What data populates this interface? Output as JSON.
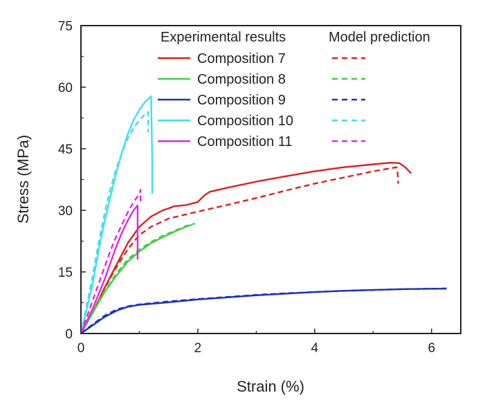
{
  "chart_data": {
    "type": "line",
    "title": "",
    "xlabel": "Strain (%)",
    "ylabel": "Stress (MPa)",
    "xlim": [
      0,
      6.5
    ],
    "ylim": [
      0,
      75
    ],
    "x_ticks": [
      0,
      2,
      4,
      6
    ],
    "y_ticks": [
      0,
      15,
      30,
      45,
      60,
      75
    ],
    "x_tick_labels": [
      "0",
      "2",
      "4",
      "6"
    ],
    "y_tick_labels": [
      "0",
      "15",
      "30",
      "45",
      "60",
      "75"
    ],
    "legend": {
      "placement": "top-right",
      "header_experimental": "Experimental results",
      "header_model": "Model prediction",
      "entries": [
        "Composition 7",
        "Composition 8",
        "Composition 9",
        "Composition 10",
        "Composition 11"
      ]
    },
    "series": [
      {
        "name": "Composition 7",
        "kind": "experimental",
        "color": "#e01e1e",
        "points": [
          [
            0,
            0
          ],
          [
            0.2,
            5
          ],
          [
            0.4,
            11
          ],
          [
            0.6,
            16.5
          ],
          [
            0.8,
            22
          ],
          [
            1.0,
            26
          ],
          [
            1.2,
            28.5
          ],
          [
            1.4,
            30
          ],
          [
            1.6,
            31
          ],
          [
            1.8,
            31.3
          ],
          [
            2.0,
            32
          ],
          [
            2.1,
            33.5
          ],
          [
            2.2,
            34.5
          ],
          [
            2.5,
            35.5
          ],
          [
            3.0,
            37
          ],
          [
            3.5,
            38.3
          ],
          [
            4.0,
            39.5
          ],
          [
            4.5,
            40.5
          ],
          [
            5.0,
            41.2
          ],
          [
            5.3,
            41.6
          ],
          [
            5.45,
            41.5
          ],
          [
            5.55,
            40.5
          ],
          [
            5.65,
            39
          ]
        ]
      },
      {
        "name": "Composition 7",
        "kind": "model",
        "color": "#e01e1e",
        "points": [
          [
            0,
            0
          ],
          [
            0.2,
            5
          ],
          [
            0.4,
            11
          ],
          [
            0.6,
            16
          ],
          [
            0.8,
            20.5
          ],
          [
            1.0,
            24
          ],
          [
            1.2,
            26
          ],
          [
            1.5,
            28
          ],
          [
            2.0,
            29.7
          ],
          [
            2.5,
            31.3
          ],
          [
            3.0,
            33
          ],
          [
            3.5,
            34.8
          ],
          [
            4.0,
            36.5
          ],
          [
            4.5,
            38
          ],
          [
            5.0,
            39.5
          ],
          [
            5.4,
            40.5
          ],
          [
            5.42,
            39
          ],
          [
            5.43,
            36.5
          ]
        ]
      },
      {
        "name": "Composition 8",
        "kind": "experimental",
        "color": "#3cd23c",
        "points": [
          [
            0,
            0
          ],
          [
            0.2,
            5
          ],
          [
            0.4,
            10
          ],
          [
            0.6,
            14
          ],
          [
            0.8,
            17.5
          ],
          [
            1.0,
            20
          ],
          [
            1.2,
            22
          ],
          [
            1.4,
            23.5
          ],
          [
            1.6,
            24.8
          ],
          [
            1.8,
            26
          ],
          [
            1.9,
            26.5
          ]
        ]
      },
      {
        "name": "Composition 8",
        "kind": "model",
        "color": "#3cd23c",
        "points": [
          [
            0,
            0
          ],
          [
            0.2,
            5.2
          ],
          [
            0.4,
            10.3
          ],
          [
            0.6,
            14.5
          ],
          [
            0.8,
            18
          ],
          [
            1.0,
            20.5
          ],
          [
            1.2,
            22.3
          ],
          [
            1.4,
            23.8
          ],
          [
            1.6,
            25
          ],
          [
            1.8,
            26.2
          ],
          [
            1.95,
            26.8
          ]
        ]
      },
      {
        "name": "Composition 9",
        "kind": "experimental",
        "color": "#1a2fc4",
        "points": [
          [
            0,
            0
          ],
          [
            0.2,
            2
          ],
          [
            0.4,
            4
          ],
          [
            0.6,
            5.5
          ],
          [
            0.8,
            6.5
          ],
          [
            1.0,
            7
          ],
          [
            1.5,
            7.6
          ],
          [
            2.0,
            8.3
          ],
          [
            2.5,
            8.8
          ],
          [
            3.0,
            9.3
          ],
          [
            3.5,
            9.7
          ],
          [
            4.0,
            10.1
          ],
          [
            4.5,
            10.4
          ],
          [
            5.0,
            10.6
          ],
          [
            5.5,
            10.8
          ],
          [
            6.0,
            10.9
          ],
          [
            6.25,
            10.9
          ]
        ]
      },
      {
        "name": "Composition 9",
        "kind": "model",
        "color": "#1a2fc4",
        "points": [
          [
            0,
            0
          ],
          [
            0.2,
            2.2
          ],
          [
            0.4,
            4.3
          ],
          [
            0.6,
            5.8
          ],
          [
            0.8,
            6.6
          ],
          [
            1.0,
            7.1
          ],
          [
            1.5,
            7.8
          ],
          [
            2.0,
            8.4
          ],
          [
            2.5,
            8.9
          ],
          [
            3.0,
            9.4
          ],
          [
            3.5,
            9.8
          ],
          [
            4.0,
            10.1
          ],
          [
            4.5,
            10.4
          ],
          [
            5.0,
            10.6
          ],
          [
            5.5,
            10.8
          ],
          [
            6.0,
            10.9
          ],
          [
            6.3,
            11
          ]
        ]
      },
      {
        "name": "Composition 10",
        "kind": "experimental",
        "color": "#3ee0ee",
        "points": [
          [
            0,
            0
          ],
          [
            0.1,
            6
          ],
          [
            0.2,
            12
          ],
          [
            0.3,
            20
          ],
          [
            0.4,
            27
          ],
          [
            0.5,
            33
          ],
          [
            0.6,
            39
          ],
          [
            0.7,
            44
          ],
          [
            0.8,
            48.5
          ],
          [
            0.9,
            52
          ],
          [
            1.0,
            54.5
          ],
          [
            1.1,
            56.5
          ],
          [
            1.2,
            57.8
          ],
          [
            1.21,
            50
          ],
          [
            1.22,
            42
          ],
          [
            1.22,
            34
          ]
        ]
      },
      {
        "name": "Composition 10",
        "kind": "model",
        "color": "#3ee0ee",
        "points": [
          [
            0,
            0
          ],
          [
            0.1,
            7
          ],
          [
            0.2,
            14
          ],
          [
            0.3,
            22
          ],
          [
            0.4,
            29
          ],
          [
            0.5,
            35
          ],
          [
            0.6,
            40
          ],
          [
            0.7,
            44
          ],
          [
            0.8,
            47.5
          ],
          [
            0.9,
            50
          ],
          [
            1.0,
            52
          ],
          [
            1.1,
            53.5
          ],
          [
            1.15,
            54
          ],
          [
            1.15,
            51.5
          ],
          [
            1.15,
            49
          ]
        ]
      },
      {
        "name": "Composition 11",
        "kind": "experimental",
        "color": "#e026e6",
        "points": [
          [
            0,
            0
          ],
          [
            0.1,
            3
          ],
          [
            0.2,
            6
          ],
          [
            0.3,
            9.5
          ],
          [
            0.4,
            13
          ],
          [
            0.5,
            17
          ],
          [
            0.6,
            21
          ],
          [
            0.7,
            24.5
          ],
          [
            0.8,
            27.5
          ],
          [
            0.9,
            30
          ],
          [
            0.97,
            31.2
          ],
          [
            0.97,
            25
          ],
          [
            0.97,
            18
          ]
        ]
      },
      {
        "name": "Composition 11",
        "kind": "model",
        "color": "#e026e6",
        "points": [
          [
            0,
            0
          ],
          [
            0.1,
            4
          ],
          [
            0.2,
            8
          ],
          [
            0.3,
            12
          ],
          [
            0.4,
            16
          ],
          [
            0.5,
            20
          ],
          [
            0.6,
            23.5
          ],
          [
            0.7,
            26.5
          ],
          [
            0.8,
            29.5
          ],
          [
            0.9,
            32
          ],
          [
            1.0,
            34
          ],
          [
            1.02,
            35
          ],
          [
            1.02,
            33
          ],
          [
            1.02,
            31.5
          ]
        ]
      }
    ]
  }
}
